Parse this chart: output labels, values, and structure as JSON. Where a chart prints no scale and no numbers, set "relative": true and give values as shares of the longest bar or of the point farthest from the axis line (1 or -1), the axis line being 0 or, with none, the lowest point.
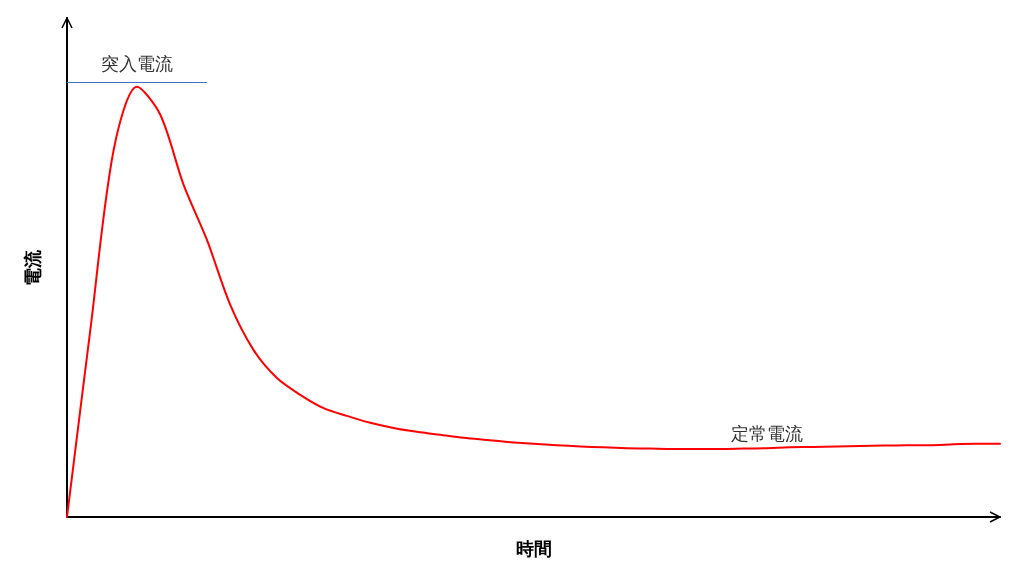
{
  "chart_data": {
    "type": "line",
    "relative": true,
    "xlabel": "時間",
    "ylabel": "電流",
    "categories": [
      null,
      null,
      null,
      null,
      null,
      null,
      null,
      null,
      null,
      null,
      null,
      null,
      null,
      null,
      null,
      null,
      null,
      null,
      null,
      null,
      null,
      null,
      null,
      null,
      null,
      null,
      null,
      null,
      null,
      null,
      null,
      null,
      null,
      null,
      null,
      null,
      null,
      null,
      null,
      null,
      null
    ],
    "series": [
      {
        "color": "#ff0000",
        "values": [
          0,
          0.435,
          0.853,
          1,
          0.935,
          0.772,
          0.644,
          0.493,
          0.388,
          0.323,
          0.284,
          0.253,
          0.235,
          0.219,
          0.207,
          0.198,
          0.191,
          0.184,
          0.179,
          0.174,
          0.17,
          0.167,
          0.164,
          0.162,
          0.16,
          0.159,
          0.158,
          0.158,
          0.158,
          0.159,
          0.16,
          0.162,
          0.163,
          0.164,
          0.165,
          0.166,
          0.167,
          0.167,
          0.169,
          0.17,
          0.17
        ]
      }
    ],
    "ref_lines": [
      {
        "axis": "y",
        "value": 1.01,
        "label": "突入電流",
        "color": "#4472c4"
      }
    ],
    "annotations": [
      "定常電流"
    ],
    "marker": "none",
    "line_style": "solid",
    "grid": false
  }
}
